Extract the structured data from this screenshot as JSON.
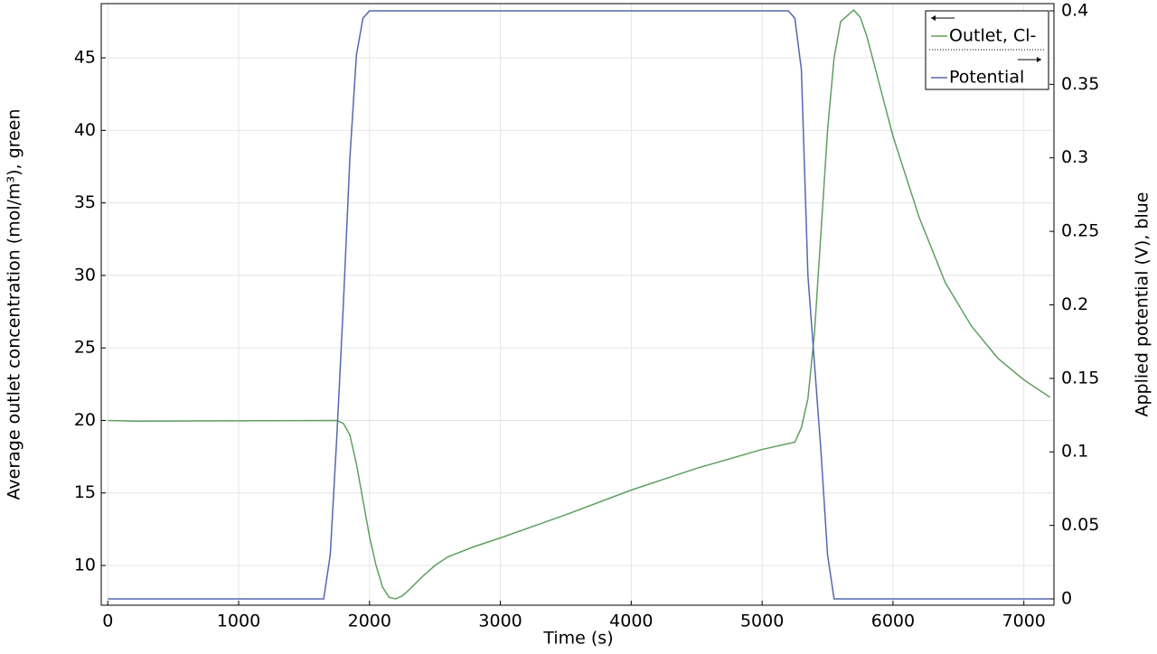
{
  "chart_data": {
    "type": "line",
    "xlabel": "Time (s)",
    "ylabel": "Average outlet concentration (mol/m³), green",
    "y2label": "Applied potential (V), blue",
    "xlim": [
      -50,
      7230
    ],
    "xticks": [
      0,
      1000,
      2000,
      3000,
      4000,
      5000,
      6000,
      7000
    ],
    "ylim": [
      7.26,
      48.74
    ],
    "yticks": [
      10,
      15,
      20,
      25,
      30,
      35,
      40,
      45
    ],
    "y2lim": [
      -0.0043,
      0.4049
    ],
    "y2ticks": [
      0,
      0.05,
      0.1,
      0.15,
      0.2,
      0.25,
      0.3,
      0.35,
      0.4
    ],
    "grid": true,
    "legend": "upper right",
    "series": [
      {
        "name": "Outlet, Cl-",
        "color": "#5fa05f",
        "axis": "y",
        "x": [
          0,
          200,
          1750,
          1800,
          1850,
          1900,
          1950,
          2000,
          2050,
          2100,
          2150,
          2200,
          2250,
          2300,
          2400,
          2500,
          2600,
          2800,
          3000,
          3500,
          4000,
          4500,
          5000,
          5250,
          5300,
          5350,
          5400,
          5450,
          5500,
          5550,
          5600,
          5700,
          5750,
          5800,
          6000,
          6200,
          6400,
          6600,
          6800,
          7000,
          7200
        ],
        "values": [
          20,
          19.95,
          20,
          19.8,
          19,
          17,
          14.5,
          12,
          10,
          8.5,
          7.8,
          7.7,
          7.9,
          8.3,
          9.2,
          10,
          10.6,
          11.3,
          11.9,
          13.5,
          15.2,
          16.7,
          18,
          18.5,
          19.5,
          21.5,
          26,
          33,
          40,
          45,
          47.5,
          48.3,
          47.8,
          46.5,
          39.6,
          34,
          29.5,
          26.5,
          24.3,
          22.8,
          21.6
        ]
      },
      {
        "name": "Potential",
        "color": "#5468b0",
        "axis": "y2",
        "x": [
          0,
          1650,
          1700,
          1750,
          1800,
          1850,
          1900,
          1950,
          2000,
          5200,
          5250,
          5300,
          5350,
          5400,
          5450,
          5500,
          5550,
          7200
        ],
        "values": [
          0,
          0,
          0.03,
          0.11,
          0.2,
          0.3,
          0.37,
          0.395,
          0.4,
          0.4,
          0.395,
          0.36,
          0.22,
          0.16,
          0.1,
          0.03,
          0,
          0
        ]
      }
    ]
  }
}
